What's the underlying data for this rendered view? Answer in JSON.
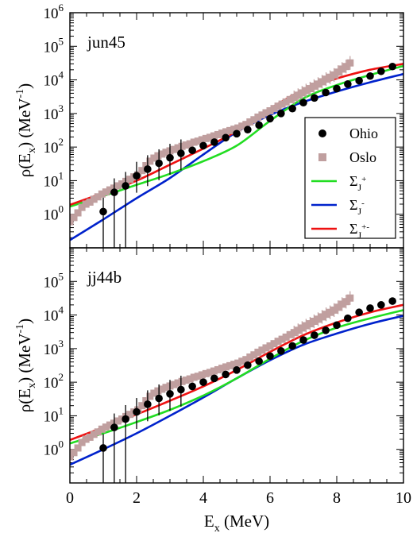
{
  "chart_data": [
    {
      "type": "scatter",
      "panel_label": "jun45",
      "ylabel_base": "ρ(E",
      "ylabel_sub": "x",
      "ylabel_unit": ") (MeV",
      "ylabel_sup": "-1",
      "ylabel_close": ")",
      "yscale": "log",
      "ylim": [
        0.1,
        1000000
      ],
      "xlim": [
        0,
        10
      ],
      "y_tick_labels": [
        "10⁰",
        "10¹",
        "10²",
        "10³",
        "10⁴",
        "10⁵",
        "10⁶"
      ],
      "legend": {
        "placement": "right",
        "entries": [
          {
            "name": "Ohio",
            "kind": "dot",
            "color": "#000000"
          },
          {
            "name": "Oslo",
            "kind": "square",
            "color": "#c09f9f"
          },
          {
            "name": "Σ",
            "sub": "J",
            "sup": "+",
            "kind": "line",
            "color": "#22dd22"
          },
          {
            "name": "Σ",
            "sub": "J",
            "sup": "-",
            "kind": "line",
            "color": "#0022cc"
          },
          {
            "name": "Σ",
            "sub": "J",
            "sup": "+-",
            "kind": "line",
            "color": "#ee1111"
          }
        ]
      },
      "series": [
        {
          "key": "ohio",
          "x": [
            1.0,
            1.33,
            1.67,
            2.0,
            2.33,
            2.67,
            3.0,
            3.33,
            3.67,
            4.0,
            4.33,
            4.67,
            5.0,
            5.33,
            5.67,
            6.0,
            6.33,
            6.67,
            7.0,
            7.33,
            7.67,
            8.0,
            8.33,
            8.67,
            9.0,
            9.33,
            9.67
          ],
          "y": [
            1.2,
            4.5,
            7,
            14,
            22,
            33,
            48,
            65,
            80,
            110,
            140,
            190,
            250,
            330,
            450,
            700,
            1000,
            1400,
            2100,
            2900,
            4200,
            5500,
            7500,
            9500,
            13000,
            18000,
            25000
          ]
        },
        {
          "key": "oslo",
          "x": [
            0.0,
            0.12,
            0.24,
            0.36,
            0.48,
            0.6,
            0.72,
            0.84,
            0.96,
            1.08,
            1.2,
            1.32,
            1.44,
            1.56,
            1.68,
            1.8,
            1.92,
            2.04,
            2.16,
            2.28,
            2.4,
            2.52,
            2.64,
            2.76,
            2.88,
            3.0,
            3.12,
            3.24,
            3.36,
            3.48,
            3.6,
            3.72,
            3.84,
            3.96,
            4.08,
            4.2,
            4.32,
            4.44,
            4.56,
            4.68,
            4.8,
            4.92,
            5.04,
            5.16,
            5.28,
            5.4,
            5.52,
            5.64,
            5.76,
            5.88,
            6.0,
            6.12,
            6.24,
            6.36,
            6.48,
            6.6,
            6.72,
            6.84,
            6.96,
            7.08,
            7.2,
            7.32,
            7.44,
            7.56,
            7.68,
            7.8,
            7.92,
            8.04,
            8.16,
            8.28,
            8.4
          ],
          "y": [
            0.6,
            0.8,
            1.1,
            1.6,
            2.0,
            2.3,
            2.8,
            3.3,
            4.0,
            4.6,
            5.3,
            6.0,
            7.0,
            8.0,
            9.5,
            11,
            13,
            15,
            20,
            28,
            38,
            47,
            55,
            62,
            70,
            77,
            85,
            95,
            105,
            115,
            125,
            140,
            150,
            165,
            180,
            195,
            215,
            235,
            260,
            285,
            310,
            340,
            370,
            420,
            470,
            560,
            650,
            780,
            900,
            1050,
            1200,
            1400,
            1650,
            1900,
            2200,
            2600,
            3000,
            3500,
            4100,
            4800,
            5500,
            6500,
            7500,
            8800,
            10500,
            12000,
            14000,
            17000,
            21000,
            25000,
            32000
          ]
        },
        {
          "key": "sum_plus",
          "x": [
            0,
            1,
            2,
            3,
            4,
            5,
            6,
            7,
            8,
            9,
            10
          ],
          "y": [
            1.7,
            3.5,
            7.5,
            16,
            38,
            110,
            600,
            2800,
            7000,
            14000,
            26000
          ]
        },
        {
          "key": "sum_minus",
          "x": [
            0,
            1,
            2,
            3,
            4,
            5,
            6,
            7,
            8,
            9,
            10
          ],
          "y": [
            0.17,
            0.7,
            3,
            12,
            60,
            280,
            900,
            2200,
            4500,
            8500,
            15000
          ]
        },
        {
          "key": "sum_total",
          "x": [
            0,
            1,
            2,
            3,
            4,
            5,
            6,
            7,
            8,
            9,
            10
          ],
          "y": [
            1.9,
            4.3,
            10,
            30,
            90,
            300,
            1400,
            5000,
            11000,
            20000,
            30000
          ]
        }
      ]
    },
    {
      "type": "scatter",
      "panel_label": "jj44b",
      "ylabel_base": "ρ(E",
      "ylabel_sub": "x",
      "ylabel_unit": ") (MeV",
      "ylabel_sup": "-1",
      "ylabel_close": ")",
      "yscale": "log",
      "ylim": [
        0.1,
        1000000
      ],
      "xlim": [
        0,
        10
      ],
      "y_tick_labels": [
        "10⁰",
        "10¹",
        "10²",
        "10³",
        "10⁴",
        "10⁵"
      ],
      "x_tick_labels": [
        "0",
        "2",
        "4",
        "6",
        "8",
        "10"
      ],
      "xlabel_base": "E",
      "xlabel_sub": "x",
      "xlabel_unit": " (MeV)",
      "series": [
        {
          "key": "ohio",
          "x": [
            1.0,
            1.33,
            1.67,
            2.0,
            2.33,
            2.67,
            3.0,
            3.33,
            3.67,
            4.0,
            4.33,
            4.67,
            5.0,
            5.33,
            5.67,
            6.0,
            6.33,
            6.67,
            7.0,
            7.33,
            7.67,
            8.0,
            8.33,
            8.67,
            9.0,
            9.33,
            9.67
          ],
          "y": [
            1.1,
            4.5,
            8,
            13,
            22,
            33,
            45,
            60,
            75,
            100,
            130,
            170,
            230,
            320,
            420,
            600,
            850,
            1200,
            1800,
            2500,
            3500,
            5000,
            8000,
            12000,
            16000,
            20000,
            26000
          ]
        },
        {
          "key": "oslo",
          "x": [
            0.0,
            0.12,
            0.24,
            0.36,
            0.48,
            0.6,
            0.72,
            0.84,
            0.96,
            1.08,
            1.2,
            1.32,
            1.44,
            1.56,
            1.68,
            1.8,
            1.92,
            2.04,
            2.16,
            2.28,
            2.4,
            2.52,
            2.64,
            2.76,
            2.88,
            3.0,
            3.12,
            3.24,
            3.36,
            3.48,
            3.6,
            3.72,
            3.84,
            3.96,
            4.08,
            4.2,
            4.32,
            4.44,
            4.56,
            4.68,
            4.8,
            4.92,
            5.04,
            5.16,
            5.28,
            5.4,
            5.52,
            5.64,
            5.76,
            5.88,
            6.0,
            6.12,
            6.24,
            6.36,
            6.48,
            6.6,
            6.72,
            6.84,
            6.96,
            7.08,
            7.2,
            7.32,
            7.44,
            7.56,
            7.68,
            7.8,
            7.92,
            8.04,
            8.16,
            8.28,
            8.4
          ],
          "y": [
            0.6,
            0.8,
            1.1,
            1.6,
            2.0,
            2.3,
            2.8,
            3.3,
            4.0,
            4.6,
            5.3,
            6.0,
            7.0,
            8.0,
            9.5,
            11,
            13,
            15,
            20,
            28,
            38,
            47,
            55,
            62,
            70,
            77,
            85,
            95,
            105,
            115,
            125,
            140,
            150,
            165,
            180,
            195,
            215,
            235,
            260,
            285,
            310,
            340,
            370,
            420,
            470,
            560,
            650,
            780,
            900,
            1050,
            1200,
            1400,
            1650,
            1900,
            2200,
            2600,
            3000,
            3500,
            4100,
            4800,
            5500,
            6500,
            7500,
            8800,
            10500,
            12000,
            14000,
            17000,
            21000,
            25000,
            32000
          ]
        },
        {
          "key": "sum_plus",
          "x": [
            0,
            1,
            2,
            3,
            4,
            5,
            6,
            7,
            8,
            9,
            10
          ],
          "y": [
            1.5,
            3,
            6.5,
            15,
            40,
            130,
            500,
            1700,
            4200,
            8000,
            14000
          ]
        },
        {
          "key": "sum_minus",
          "x": [
            0,
            1,
            2,
            3,
            4,
            5,
            6,
            7,
            8,
            9,
            10
          ],
          "y": [
            0.35,
            1,
            3,
            10,
            35,
            130,
            450,
            1300,
            2800,
            5500,
            9500
          ]
        },
        {
          "key": "sum_total",
          "x": [
            0,
            1,
            2,
            3,
            4,
            5,
            6,
            7,
            8,
            9,
            10
          ],
          "y": [
            1.9,
            4.5,
            11,
            28,
            75,
            230,
            800,
            2500,
            6000,
            12000,
            20000
          ]
        }
      ]
    }
  ]
}
